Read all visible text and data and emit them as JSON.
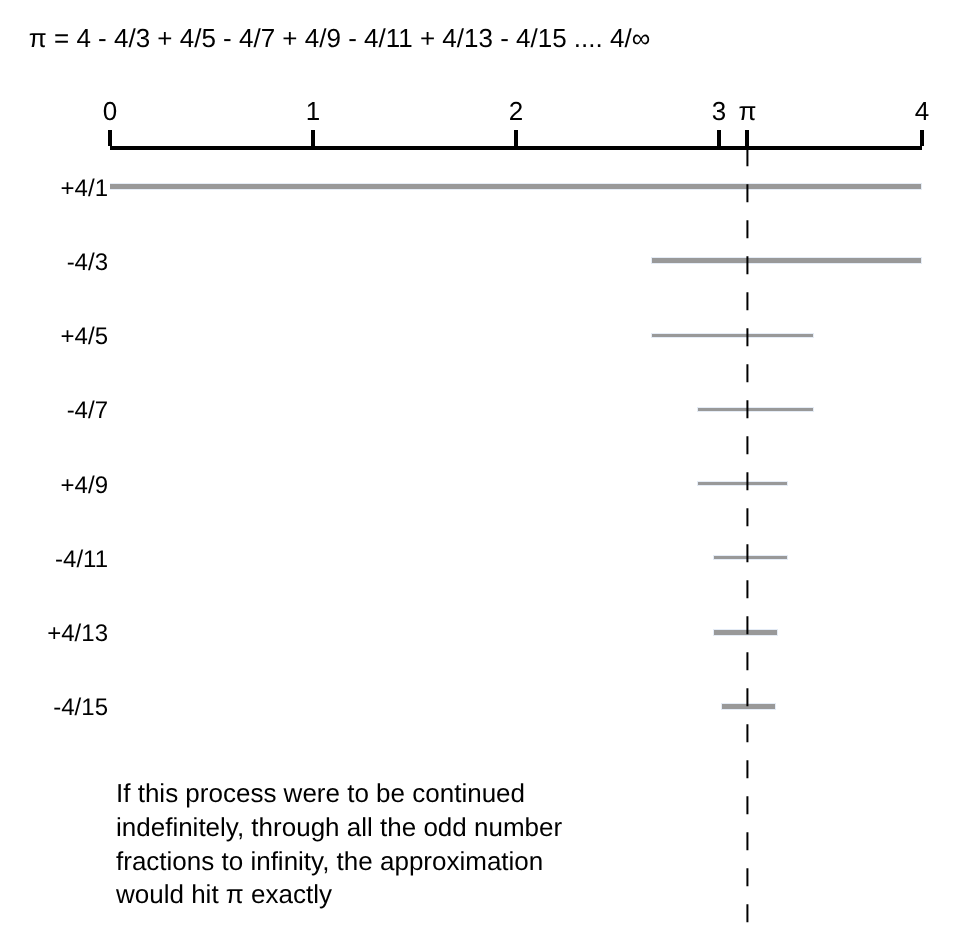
{
  "chart_data": {
    "type": "bar",
    "orientation": "horizontal",
    "title": "π = 4 - 4/3 + 4/5 - 4/7 + 4/9 - 4/11 + 4/13 - 4/15 .... 4/∞",
    "categories": [
      "+4/1",
      "-4/3",
      "+4/5",
      "-4/7",
      "+4/9",
      "-4/11",
      "+4/13",
      "-4/15"
    ],
    "values": [
      4,
      -1.33,
      0.8,
      -0.57,
      0.44,
      -0.36,
      0.31,
      -0.27
    ],
    "base": [
      0,
      4,
      2.67,
      3.47,
      2.9,
      3.34,
      2.98,
      3.28
    ],
    "color": "#999999",
    "xlim": [
      0,
      4
    ],
    "xticks": [
      0,
      1,
      2,
      3,
      {
        "value": 3.14,
        "label": "π"
      },
      4
    ],
    "ref_lines": [
      {
        "axis": "x",
        "value": 3.14,
        "label": null,
        "color": "#000000",
        "line_style": "dashed"
      }
    ],
    "annotations": [
      "If this process were to be continued indefinitely, through all the odd number fractions to infinity, the approximation would hit π exactly"
    ]
  }
}
